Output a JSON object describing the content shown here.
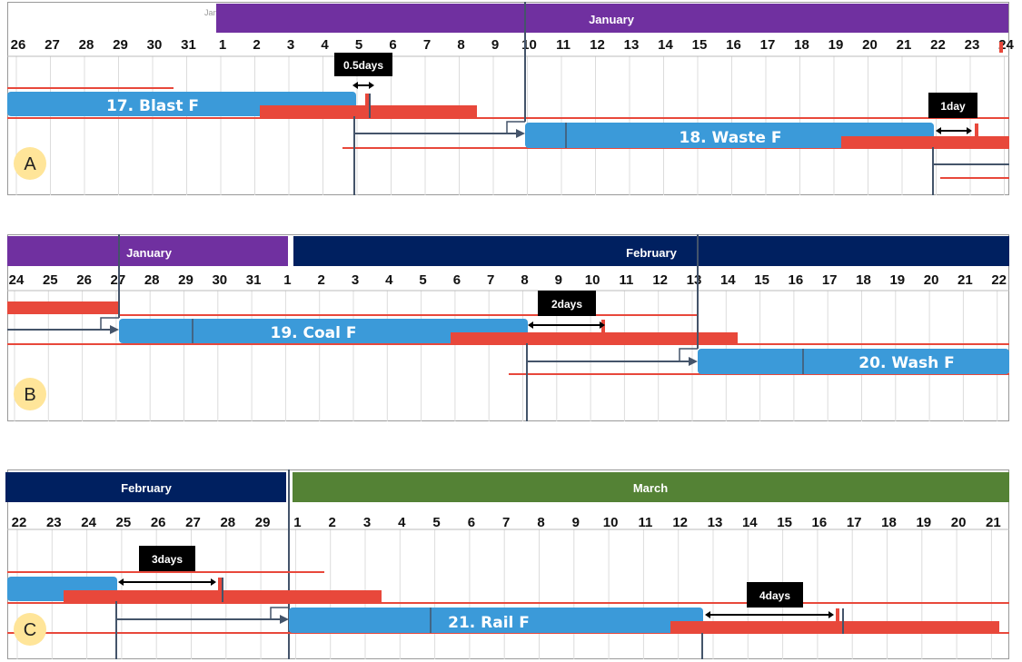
{
  "colors": {
    "january": "#7030a0",
    "february": "#002060",
    "march": "#548235",
    "task_bar": "#3b9ad9",
    "buffer_bar": "#e8483b",
    "link": "#44546a",
    "badge": "#ffe599",
    "callout": "#000000",
    "grid": "#dcdcdc"
  },
  "panels": [
    {
      "label": "A",
      "faint_month_text": "Jan",
      "months": [
        {
          "name": "January",
          "color_key": "january"
        }
      ],
      "days": [
        "26",
        "27",
        "28",
        "29",
        "30",
        "31",
        "1",
        "2",
        "3",
        "4",
        "5",
        "6",
        "7",
        "8",
        "9",
        "10",
        "11",
        "12",
        "13",
        "14",
        "15",
        "16",
        "17",
        "18",
        "19",
        "20",
        "21",
        "22",
        "23",
        "24"
      ],
      "task_bars": [
        {
          "label": "17. Blast F"
        },
        {
          "label": "18. Waste F"
        }
      ],
      "callouts": [
        {
          "text": "0.5days"
        },
        {
          "text": "1day"
        }
      ]
    },
    {
      "label": "B",
      "months": [
        {
          "name": "January",
          "color_key": "january"
        },
        {
          "name": "February",
          "color_key": "february"
        }
      ],
      "days": [
        "24",
        "25",
        "26",
        "27",
        "28",
        "29",
        "30",
        "31",
        "1",
        "2",
        "3",
        "4",
        "5",
        "6",
        "7",
        "8",
        "9",
        "10",
        "11",
        "12",
        "13",
        "14",
        "15",
        "16",
        "17",
        "18",
        "19",
        "20",
        "21",
        "22"
      ],
      "task_bars": [
        {
          "label": "19. Coal F"
        },
        {
          "label": "20. Wash F"
        }
      ],
      "callouts": [
        {
          "text": "2days"
        }
      ]
    },
    {
      "label": "C",
      "months": [
        {
          "name": "February",
          "color_key": "february"
        },
        {
          "name": "March",
          "color_key": "march"
        }
      ],
      "days": [
        "22",
        "23",
        "24",
        "25",
        "26",
        "27",
        "28",
        "29",
        "1",
        "2",
        "3",
        "4",
        "5",
        "6",
        "7",
        "8",
        "9",
        "10",
        "11",
        "12",
        "13",
        "14",
        "15",
        "16",
        "17",
        "18",
        "19",
        "20",
        "21"
      ],
      "task_bars": [
        {
          "label": "21. Rail F"
        }
      ],
      "callouts": [
        {
          "text": "3days"
        },
        {
          "text": "4days"
        }
      ]
    }
  ]
}
